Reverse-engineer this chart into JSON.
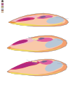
{
  "background_color": "#ffffff",
  "colors": {
    "salmon": "#F4A070",
    "light_salmon": "#F9C8A8",
    "pink_med": "#E8A0B8",
    "hot_pink": "#D03870",
    "magenta": "#B02880",
    "bright_pink": "#E060A0",
    "light_pink": "#F0B8CC",
    "pale_pink": "#F8D8E4",
    "yellow": "#F0DC60",
    "light_yellow": "#F8EFA0",
    "gray_blue": "#B8C8D8",
    "light_gray": "#D8DDE8",
    "purple": "#806090",
    "orange": "#E89040",
    "light_orange": "#F0C080",
    "white_blue": "#E8EEF4",
    "dark_line": "#606060",
    "blue_line": "#8090B0"
  },
  "footer_color": "#888888",
  "page_bg": "#f8f8f6"
}
